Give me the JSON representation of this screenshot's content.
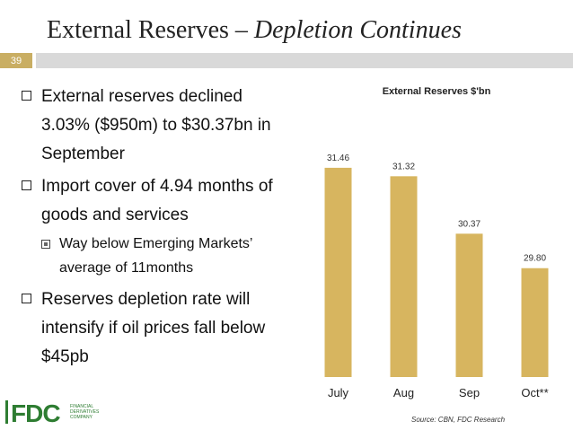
{
  "slide": {
    "title_main": "External Reserves –",
    "title_em": "Depletion Continues",
    "number": "39"
  },
  "bullets": [
    {
      "text": "External reserves declined 3.03% ($950m) to $30.37bn in September"
    },
    {
      "text": "Import cover of 4.94 months of goods and services",
      "sub": "Way below Emerging Markets’ average of 11months"
    },
    {
      "text": "Reserves depletion rate will intensify if oil prices fall below $45pb"
    }
  ],
  "colors": {
    "bar": "#d7b55f",
    "accent": "#c9ae63",
    "header_bar": "#d9d9d9"
  },
  "chart_data": {
    "type": "bar",
    "title": "External Reserves $'bn",
    "categories": [
      "July",
      "Aug",
      "Sep",
      "Oct**"
    ],
    "values": [
      31.46,
      31.32,
      30.37,
      29.8
    ],
    "value_labels": [
      "31.46",
      "31.32",
      "30.37",
      "29.80"
    ],
    "ylim": [
      28.0,
      31.8
    ],
    "grid": false,
    "legend": "none"
  },
  "source": "Source: CBN, FDC Research",
  "logo": {
    "text": "FDC",
    "tagline": [
      "FINANCIAL",
      "DERIVATIVES",
      "COMPANY"
    ]
  }
}
